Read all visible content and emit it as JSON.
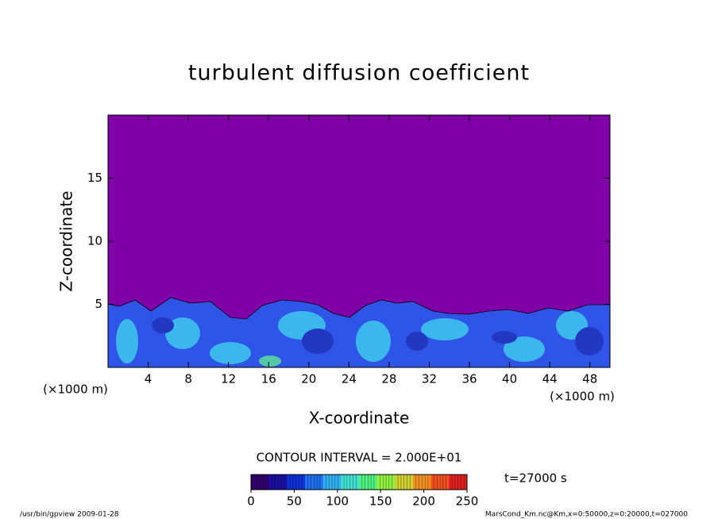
{
  "chart_data": {
    "type": "contour",
    "title": "turbulent diffusion coefficient",
    "xlabel": "X-coordinate",
    "ylabel": "Z-coordinate",
    "xunit": "(×1000 m)",
    "yunit": "(×1000 m)",
    "xlim": [
      0,
      50
    ],
    "xticks": [
      4,
      8,
      12,
      16,
      20,
      24,
      28,
      32,
      36,
      40,
      44,
      48
    ],
    "ylim": [
      0,
      20
    ],
    "yticks": [
      5,
      10,
      15
    ],
    "contour_interval": "CONTOUR INTERVAL = 2.000E+01",
    "time_label": "t=27000 s",
    "colorbar": {
      "range": [
        0,
        250
      ],
      "ticks": [
        0,
        50,
        100,
        150,
        200,
        250
      ],
      "colors": [
        "#30006e",
        "#1a10a0",
        "#1030d8",
        "#2070f0",
        "#30b0f0",
        "#40e0d0",
        "#50f080",
        "#90f040",
        "#d0d030",
        "#f09020",
        "#f05020",
        "#e02020"
      ]
    },
    "background_color": "#7f00a6",
    "footer_left": "/usr/bin/gpview   2009-01-28",
    "footer_right": "MarsCond_Km.nc@Km,x=0:50000,z=0:20000,t=027000"
  }
}
